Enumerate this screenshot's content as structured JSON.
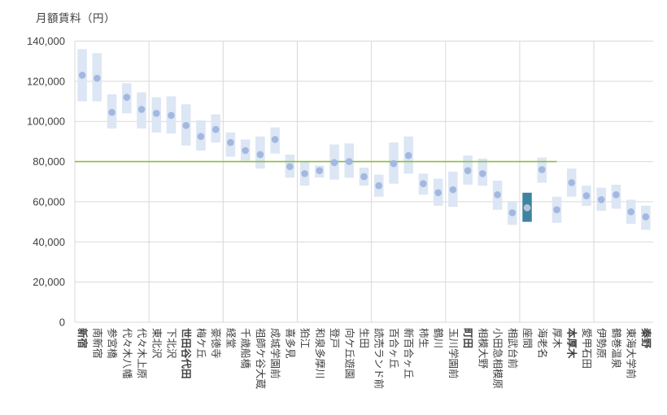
{
  "title": "月額賃料（円）",
  "chart_data": {
    "type": "bar",
    "subtype": "floating-range-bars-with-median-dots",
    "title": "月額賃料（円）",
    "ylabel": "月額賃料（円）",
    "xlabel": "",
    "ylim": [
      0,
      140000
    ],
    "ytick_step": 20000,
    "ytick_labels": [
      "0",
      "20,000",
      "40,000",
      "60,000",
      "80,000",
      "100,000",
      "120,000",
      "140,000"
    ],
    "grid": "on",
    "legend": "none",
    "x_gridline_every_n_categories": 5,
    "reference_line": {
      "value": 80000,
      "spans_categories_from": "新宿",
      "spans_categories_to": "厚木",
      "color": "#8cbe3c"
    },
    "highlighted_category": "座間",
    "bold_categories": [
      "新宿",
      "世田谷代田",
      "町田",
      "本厚木",
      "秦野"
    ],
    "categories": [
      "新宿",
      "南新宿",
      "参宮橋",
      "代々木八幡",
      "代々木上原",
      "東北沢",
      "下北沢",
      "世田谷代田",
      "梅ケ丘",
      "豪徳寺",
      "経堂",
      "千歳船橋",
      "祖師ケ谷大蔵",
      "成城学園前",
      "喜多見",
      "狛江",
      "和泉多摩川",
      "登戸",
      "向ケ丘遊園",
      "生田",
      "読売ランド前",
      "百合ヶ丘",
      "新百合ヶ丘",
      "柿生",
      "鶴川",
      "玉川学園前",
      "町田",
      "相模大野",
      "小田急相模原",
      "相武台前",
      "座間",
      "海老名",
      "厚木",
      "本厚木",
      "愛甲石田",
      "伊勢原",
      "鶴巻温泉",
      "東海大学前",
      "秦野"
    ],
    "bars": [
      {
        "station": "新宿",
        "min": 110000,
        "max": 136000,
        "mid": 123000
      },
      {
        "station": "南新宿",
        "min": 110000,
        "max": 134000,
        "mid": 121500
      },
      {
        "station": "参宮橋",
        "min": 96500,
        "max": 113500,
        "mid": 104500
      },
      {
        "station": "代々木八幡",
        "min": 104000,
        "max": 119000,
        "mid": 112000
      },
      {
        "station": "代々木上原",
        "min": 96500,
        "max": 114500,
        "mid": 106000
      },
      {
        "station": "東北沢",
        "min": 94500,
        "max": 112000,
        "mid": 104000
      },
      {
        "station": "下北沢",
        "min": 94000,
        "max": 112500,
        "mid": 103000
      },
      {
        "station": "世田谷代田",
        "min": 88000,
        "max": 108500,
        "mid": 98000
      },
      {
        "station": "梅ケ丘",
        "min": 85500,
        "max": 100500,
        "mid": 92500
      },
      {
        "station": "豪徳寺",
        "min": 89500,
        "max": 103500,
        "mid": 96000
      },
      {
        "station": "経堂",
        "min": 82500,
        "max": 94500,
        "mid": 89500
      },
      {
        "station": "千歳船橋",
        "min": 80500,
        "max": 91000,
        "mid": 85500
      },
      {
        "station": "祖師ケ谷大蔵",
        "min": 76500,
        "max": 92500,
        "mid": 83500
      },
      {
        "station": "成城学園前",
        "min": 84000,
        "max": 97000,
        "mid": 91000
      },
      {
        "station": "喜多見",
        "min": 72000,
        "max": 83500,
        "mid": 77500
      },
      {
        "station": "狛江",
        "min": 68000,
        "max": 80000,
        "mid": 74000
      },
      {
        "station": "和泉多摩川",
        "min": 72000,
        "max": 78000,
        "mid": 75500
      },
      {
        "station": "登戸",
        "min": 71000,
        "max": 88500,
        "mid": 79500
      },
      {
        "station": "向ケ丘遊園",
        "min": 72000,
        "max": 89000,
        "mid": 80000
      },
      {
        "station": "生田",
        "min": 68000,
        "max": 77000,
        "mid": 72500
      },
      {
        "station": "読売ランド前",
        "min": 62500,
        "max": 73500,
        "mid": 68000
      },
      {
        "station": "百合ヶ丘",
        "min": 69000,
        "max": 89500,
        "mid": 79000
      },
      {
        "station": "新百合ヶ丘",
        "min": 74000,
        "max": 92500,
        "mid": 83000
      },
      {
        "station": "柿生",
        "min": 63500,
        "max": 74000,
        "mid": 69000
      },
      {
        "station": "鶴川",
        "min": 58000,
        "max": 71500,
        "mid": 64500
      },
      {
        "station": "玉川学園前",
        "min": 57500,
        "max": 75000,
        "mid": 66000
      },
      {
        "station": "町田",
        "min": 68500,
        "max": 83000,
        "mid": 75500
      },
      {
        "station": "相模大野",
        "min": 68000,
        "max": 81500,
        "mid": 74000
      },
      {
        "station": "小田急相模原",
        "min": 56000,
        "max": 70500,
        "mid": 63500
      },
      {
        "station": "相武台前",
        "min": 48500,
        "max": 60000,
        "mid": 54500
      },
      {
        "station": "座間",
        "min": 50000,
        "max": 64500,
        "mid": 57000
      },
      {
        "station": "海老名",
        "min": 69500,
        "max": 82000,
        "mid": 76000
      },
      {
        "station": "厚木",
        "min": 49500,
        "max": 62500,
        "mid": 56000
      },
      {
        "station": "本厚木",
        "min": 62500,
        "max": 76500,
        "mid": 69500
      },
      {
        "station": "愛甲石田",
        "min": 58000,
        "max": 68000,
        "mid": 63000
      },
      {
        "station": "伊勢原",
        "min": 55500,
        "max": 67000,
        "mid": 61000
      },
      {
        "station": "鶴巻温泉",
        "min": 56500,
        "max": 68500,
        "mid": 63500
      },
      {
        "station": "東海大学前",
        "min": 49000,
        "max": 61000,
        "mid": 55000
      },
      {
        "station": "秦野",
        "min": 46000,
        "max": 58000,
        "mid": 52500
      }
    ]
  },
  "colors": {
    "bar_fill": "#dce6f4",
    "dot_fill": "#a2b8e0",
    "highlight_bar_fill": "#3e84a0",
    "highlight_dot_fill": "#b9c4da",
    "gridline": "#d9d9d9",
    "reference_line": "#8cbe3c",
    "text": "#404040",
    "background": "#ffffff"
  }
}
